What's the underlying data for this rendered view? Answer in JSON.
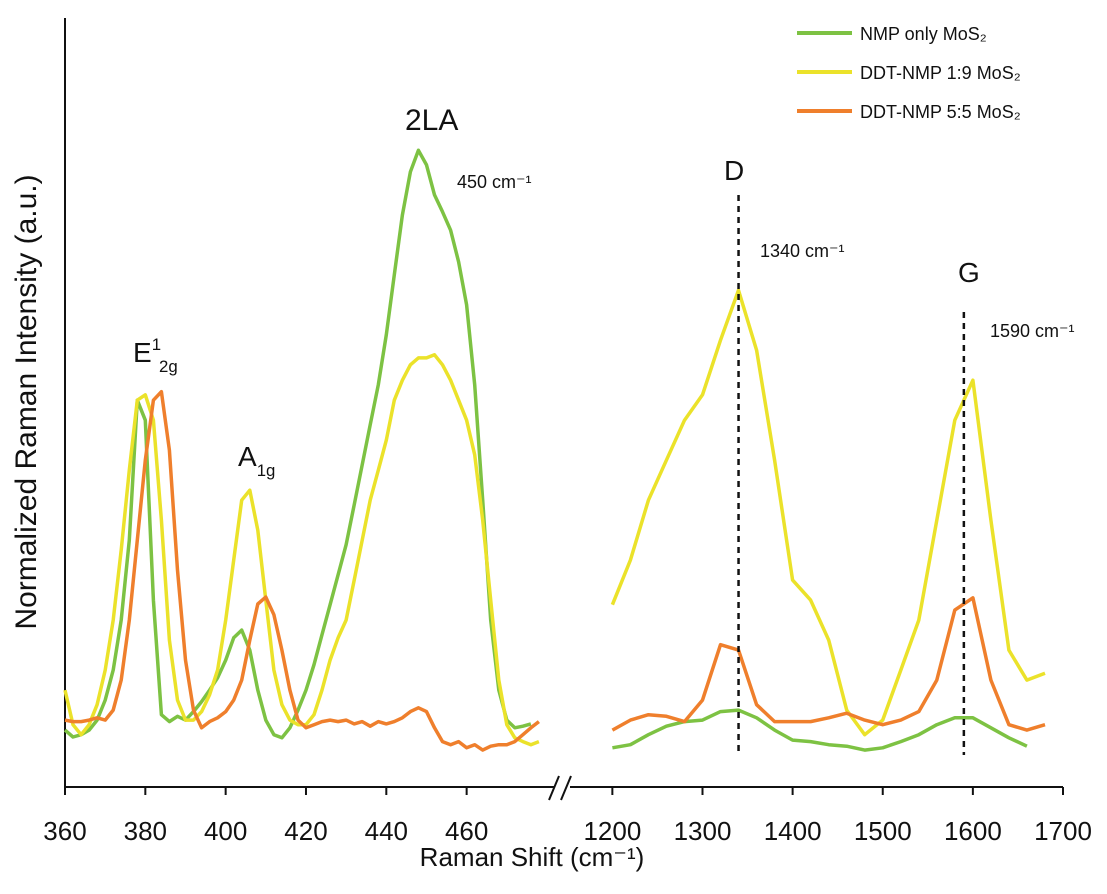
{
  "chart_data": [
    {
      "type": "line",
      "y_label": "Normalized Raman Intensity (a.u.)",
      "x_label": "Raman Shift (cm⁻¹)",
      "xlim": [
        360,
        482
      ],
      "xticks": [
        360,
        380,
        400,
        420,
        440,
        460
      ],
      "ylim": [
        0,
        100
      ],
      "x": [
        360,
        362,
        364,
        366,
        368,
        370,
        372,
        374,
        376,
        378,
        380,
        382,
        384,
        386,
        388,
        390,
        392,
        394,
        396,
        398,
        400,
        402,
        404,
        406,
        408,
        410,
        412,
        414,
        416,
        418,
        420,
        422,
        424,
        426,
        428,
        430,
        432,
        434,
        436,
        438,
        440,
        442,
        444,
        446,
        448,
        450,
        452,
        454,
        456,
        458,
        460,
        462,
        464,
        466,
        468,
        470,
        472,
        474,
        476,
        478,
        480
      ],
      "series": [
        {
          "name": "NMP only MoS₂",
          "color": "#7dc243",
          "values": [
            7.4,
            6.5,
            6.8,
            7.4,
            8.7,
            11.3,
            15.2,
            21.7,
            32.1,
            50.3,
            47.7,
            24.3,
            9.4,
            8.5,
            9.2,
            8.7,
            9.8,
            11.1,
            12.6,
            14.2,
            16.5,
            19.4,
            20.4,
            17.8,
            12.6,
            8.7,
            6.8,
            6.4,
            7.7,
            10.0,
            12.6,
            15.9,
            19.8,
            23.7,
            27.6,
            31.5,
            36.7,
            41.9,
            47.1,
            52.3,
            58.8,
            66.6,
            74.4,
            80.0,
            82.8,
            80.9,
            77.0,
            74.8,
            72.4,
            68.3,
            62.7,
            52.3,
            37.3,
            21.7,
            12.6,
            8.7,
            7.7,
            7.9,
            8.2,
            null,
            null
          ]
        },
        {
          "name": "DDT-NMP 1:9 MoS₂",
          "color": "#ebe22a",
          "values": [
            12.6,
            8.1,
            6.8,
            8.1,
            10.7,
            15.2,
            21.7,
            30.8,
            41.2,
            50.3,
            51.0,
            47.7,
            34.7,
            19.1,
            11.3,
            8.7,
            8.7,
            9.8,
            12.0,
            15.2,
            21.7,
            29.5,
            37.3,
            38.6,
            33.4,
            24.3,
            15.2,
            10.7,
            8.7,
            8.1,
            8.1,
            9.4,
            12.6,
            16.5,
            19.4,
            21.7,
            26.9,
            32.1,
            37.3,
            41.2,
            45.1,
            50.3,
            52.9,
            54.9,
            55.8,
            55.8,
            56.2,
            54.9,
            52.9,
            50.3,
            47.7,
            43.2,
            34.7,
            24.3,
            13.9,
            8.1,
            6.4,
            5.9,
            5.5,
            5.9,
            null
          ]
        },
        {
          "name": "DDT-NMP 5:5 MoS₂",
          "color": "#ef7f2c",
          "values": [
            8.7,
            8.5,
            8.5,
            8.7,
            9.0,
            8.7,
            10.0,
            13.9,
            21.7,
            32.1,
            42.5,
            50.3,
            51.4,
            43.8,
            28.2,
            16.5,
            10.0,
            7.7,
            8.5,
            9.0,
            9.8,
            11.3,
            13.9,
            19.1,
            23.8,
            24.7,
            22.4,
            17.8,
            12.6,
            8.7,
            7.7,
            8.1,
            8.5,
            8.7,
            8.5,
            8.7,
            8.2,
            8.5,
            7.9,
            8.5,
            8.2,
            8.5,
            9.0,
            9.8,
            10.3,
            9.8,
            7.7,
            5.9,
            5.5,
            5.9,
            5.1,
            5.5,
            4.8,
            5.3,
            5.5,
            5.5,
            5.9,
            6.8,
            7.7,
            8.5,
            null
          ]
        }
      ],
      "annotations": [
        {
          "text": "E",
          "sup": "1",
          "sub": "2g"
        },
        {
          "text": "A",
          "sub": "1g"
        },
        {
          "text": "2LA"
        },
        {
          "text": "450 cm⁻¹"
        }
      ]
    },
    {
      "type": "line",
      "xlim": [
        1153,
        1700
      ],
      "xticks": [
        1200,
        1300,
        1400,
        1500,
        1600,
        1700
      ],
      "ylim": [
        0,
        100
      ],
      "x": [
        1200,
        1220,
        1240,
        1260,
        1280,
        1300,
        1320,
        1340,
        1360,
        1380,
        1400,
        1420,
        1440,
        1460,
        1480,
        1500,
        1520,
        1540,
        1560,
        1580,
        1600,
        1620,
        1640,
        1660,
        1680
      ],
      "series": [
        {
          "color": "#7dc243",
          "values": [
            5.1,
            5.5,
            6.8,
            7.9,
            8.5,
            8.7,
            9.8,
            10.0,
            9.0,
            7.4,
            6.1,
            5.9,
            5.5,
            5.3,
            4.8,
            5.1,
            5.9,
            6.8,
            8.1,
            9.0,
            9.0,
            7.7,
            6.4,
            5.3,
            null
          ]
        },
        {
          "color": "#ebe22a",
          "values": [
            23.7,
            29.5,
            37.3,
            42.5,
            47.7,
            51.0,
            58.1,
            64.6,
            56.8,
            42.5,
            26.9,
            24.3,
            19.1,
            10.0,
            6.8,
            8.7,
            15.2,
            21.7,
            34.7,
            47.7,
            52.9,
            34.7,
            17.8,
            13.9,
            14.8
          ]
        },
        {
          "color": "#ef7f2c",
          "values": [
            7.4,
            8.7,
            9.4,
            9.2,
            8.5,
            11.3,
            18.5,
            17.8,
            10.7,
            8.5,
            8.5,
            8.5,
            9.0,
            9.6,
            8.7,
            8.1,
            8.7,
            9.8,
            13.9,
            23.0,
            24.6,
            13.9,
            8.1,
            7.4,
            8.1
          ]
        }
      ],
      "markers": [
        1340,
        1590
      ],
      "annotations": [
        {
          "text": "D"
        },
        {
          "text": "1340 cm⁻¹"
        },
        {
          "text": "G"
        },
        {
          "text": "1590 cm⁻¹"
        }
      ]
    }
  ]
}
